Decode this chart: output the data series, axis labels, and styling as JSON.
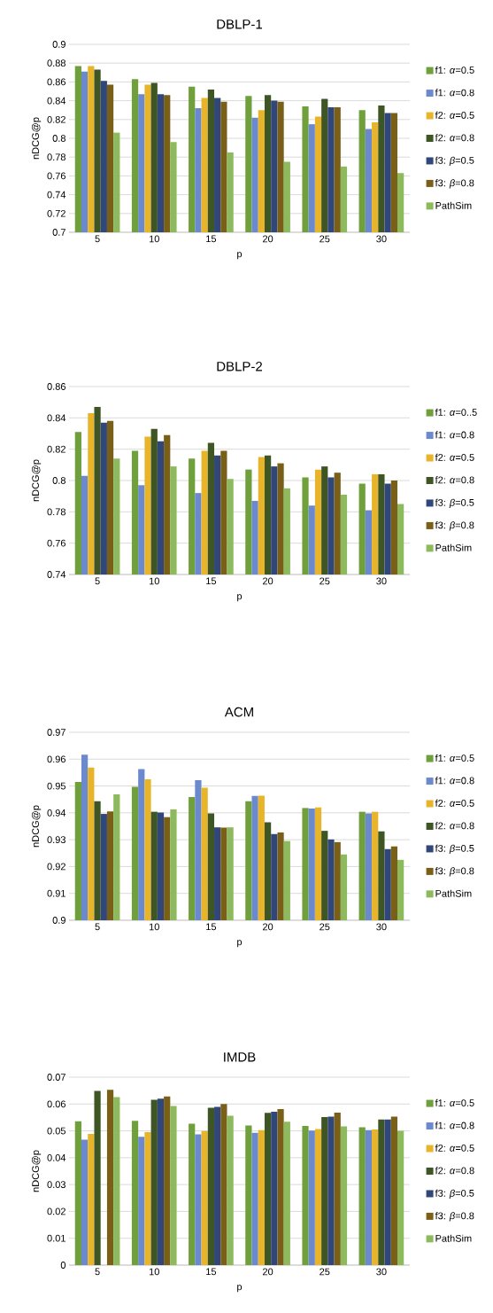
{
  "chart_data": [
    {
      "type": "bar",
      "title": "DBLP-1",
      "xlabel": "p",
      "ylabel": "nDCG@p",
      "categories": [
        "5",
        "10",
        "15",
        "20",
        "25",
        "30"
      ],
      "ylim": [
        0.7,
        0.9
      ],
      "yticks": [
        0.7,
        0.72,
        0.74,
        0.76,
        0.78,
        0.8,
        0.82,
        0.84,
        0.86,
        0.88,
        0.9
      ],
      "grid": "y",
      "legend": "right",
      "series": [
        {
          "name": "f1: *α*=0.5",
          "color": "#70a03c",
          "values": [
            0.877,
            0.863,
            0.855,
            0.845,
            0.834,
            0.83
          ]
        },
        {
          "name": "f1: *α*=0.8",
          "color": "#6a8acd",
          "values": [
            0.871,
            0.847,
            0.832,
            0.822,
            0.815,
            0.81
          ]
        },
        {
          "name": "f2: *α*=0.5",
          "color": "#e8b52a",
          "values": [
            0.877,
            0.857,
            0.843,
            0.83,
            0.823,
            0.817
          ]
        },
        {
          "name": "f2: *α*=0.8",
          "color": "#3e5624",
          "values": [
            0.873,
            0.859,
            0.852,
            0.846,
            0.842,
            0.835
          ]
        },
        {
          "name": "f3: *β*=0.5",
          "color": "#31477a",
          "values": [
            0.861,
            0.847,
            0.843,
            0.84,
            0.833,
            0.827
          ]
        },
        {
          "name": "f3: *β*=0.8",
          "color": "#7a5f18",
          "values": [
            0.857,
            0.846,
            0.839,
            0.839,
            0.833,
            0.827
          ]
        },
        {
          "name": "PathSim",
          "color": "#8cba5c",
          "values": [
            0.806,
            0.796,
            0.785,
            0.775,
            0.77,
            0.763
          ]
        }
      ]
    },
    {
      "type": "bar",
      "title": "DBLP-2",
      "xlabel": "p",
      "ylabel": "nDCG@p",
      "categories": [
        "5",
        "10",
        "15",
        "20",
        "25",
        "30"
      ],
      "ylim": [
        0.74,
        0.86
      ],
      "yticks": [
        0.74,
        0.76,
        0.78,
        0.8,
        0.82,
        0.84,
        0.86
      ],
      "grid": "y",
      "legend": "right",
      "series": [
        {
          "name": "f1: *α*=0..5",
          "color": "#70a03c",
          "values": [
            0.831,
            0.819,
            0.814,
            0.807,
            0.802,
            0.798
          ]
        },
        {
          "name": "f1: *α*=0.8",
          "color": "#6a8acd",
          "values": [
            0.803,
            0.797,
            0.792,
            0.787,
            0.784,
            0.781
          ]
        },
        {
          "name": "f2: *α*=0.5",
          "color": "#e8b52a",
          "values": [
            0.843,
            0.828,
            0.819,
            0.815,
            0.807,
            0.804
          ]
        },
        {
          "name": "f2: *α*=0.8",
          "color": "#3e5624",
          "values": [
            0.847,
            0.833,
            0.824,
            0.816,
            0.809,
            0.804
          ]
        },
        {
          "name": "f3: *β*=0.5",
          "color": "#31477a",
          "values": [
            0.837,
            0.825,
            0.816,
            0.809,
            0.802,
            0.798
          ]
        },
        {
          "name": "f3: *β*=0.8",
          "color": "#7a5f18",
          "values": [
            0.838,
            0.829,
            0.819,
            0.811,
            0.805,
            0.8
          ]
        },
        {
          "name": "PathSim",
          "color": "#8cba5c",
          "values": [
            0.814,
            0.809,
            0.801,
            0.795,
            0.791,
            0.785
          ]
        }
      ]
    },
    {
      "type": "bar",
      "title": "ACM",
      "xlabel": "p",
      "ylabel": "nDCG@p",
      "categories": [
        "5",
        "10",
        "15",
        "20",
        "25",
        "30"
      ],
      "ylim": [
        0.9,
        0.97
      ],
      "yticks": [
        0.9,
        0.91,
        0.92,
        0.93,
        0.94,
        0.95,
        0.96,
        0.97
      ],
      "grid": "y",
      "legend": "right",
      "series": [
        {
          "name": "f1: *α*=0.5",
          "color": "#70a03c",
          "values": [
            0.9515,
            0.9497,
            0.9459,
            0.9443,
            0.9418,
            0.9404
          ]
        },
        {
          "name": "f1: *α*=0.8",
          "color": "#6a8acd",
          "values": [
            0.9617,
            0.9563,
            0.9522,
            0.9463,
            0.9416,
            0.9398
          ]
        },
        {
          "name": "f2: *α*=0.5",
          "color": "#e8b52a",
          "values": [
            0.9569,
            0.9525,
            0.9494,
            0.9464,
            0.942,
            0.9404
          ]
        },
        {
          "name": "f2: *α*=0.8",
          "color": "#3e5624",
          "values": [
            0.9443,
            0.9404,
            0.9398,
            0.9365,
            0.9333,
            0.9331
          ]
        },
        {
          "name": "f3: *β*=0.5",
          "color": "#31477a",
          "values": [
            0.9396,
            0.9401,
            0.9346,
            0.9321,
            0.9301,
            0.9265
          ]
        },
        {
          "name": "f3: *β*=0.8",
          "color": "#7a5f18",
          "values": [
            0.9405,
            0.9384,
            0.9345,
            0.9327,
            0.9291,
            0.9275
          ]
        },
        {
          "name": "PathSim",
          "color": "#8cba5c",
          "values": [
            0.9469,
            0.9413,
            0.9346,
            0.9295,
            0.9245,
            0.9225
          ]
        }
      ]
    },
    {
      "type": "bar",
      "title": "IMDB",
      "xlabel": "p",
      "ylabel": "nDCG@p",
      "categories": [
        "5",
        "10",
        "15",
        "20",
        "25",
        "30"
      ],
      "ylim": [
        0,
        0.07
      ],
      "yticks": [
        0,
        0.01,
        0.02,
        0.03,
        0.04,
        0.05,
        0.06,
        0.07
      ],
      "grid": "y",
      "legend": "right",
      "series": [
        {
          "name": "f1: *α*=0.5",
          "color": "#70a03c",
          "values": [
            0.0536,
            0.0537,
            0.0527,
            0.052,
            0.0518,
            0.0513
          ]
        },
        {
          "name": "f1: *α*=0.8",
          "color": "#6a8acd",
          "values": [
            0.0467,
            0.0478,
            0.0487,
            0.0493,
            0.0501,
            0.0503
          ]
        },
        {
          "name": "f2: *α*=0.5",
          "color": "#e8b52a",
          "values": [
            0.0489,
            0.0495,
            0.0499,
            0.0503,
            0.0507,
            0.0505
          ]
        },
        {
          "name": "f2: *α*=0.8",
          "color": "#3e5624",
          "values": [
            0.0649,
            0.0616,
            0.0586,
            0.0567,
            0.0551,
            0.0542
          ]
        },
        {
          "name": "f3: *β*=0.5",
          "color": "#31477a",
          "values": [
            null,
            0.062,
            0.0589,
            0.0571,
            0.0553,
            0.0542
          ]
        },
        {
          "name": "f3: *β*=0.8",
          "color": "#7a5f18",
          "values": [
            0.0653,
            0.0628,
            0.06,
            0.0581,
            0.0568,
            0.0553
          ]
        },
        {
          "name": "PathSim",
          "color": "#8cba5c",
          "values": [
            0.0626,
            0.0593,
            0.0556,
            0.0534,
            0.0517,
            0.05
          ]
        }
      ]
    }
  ]
}
